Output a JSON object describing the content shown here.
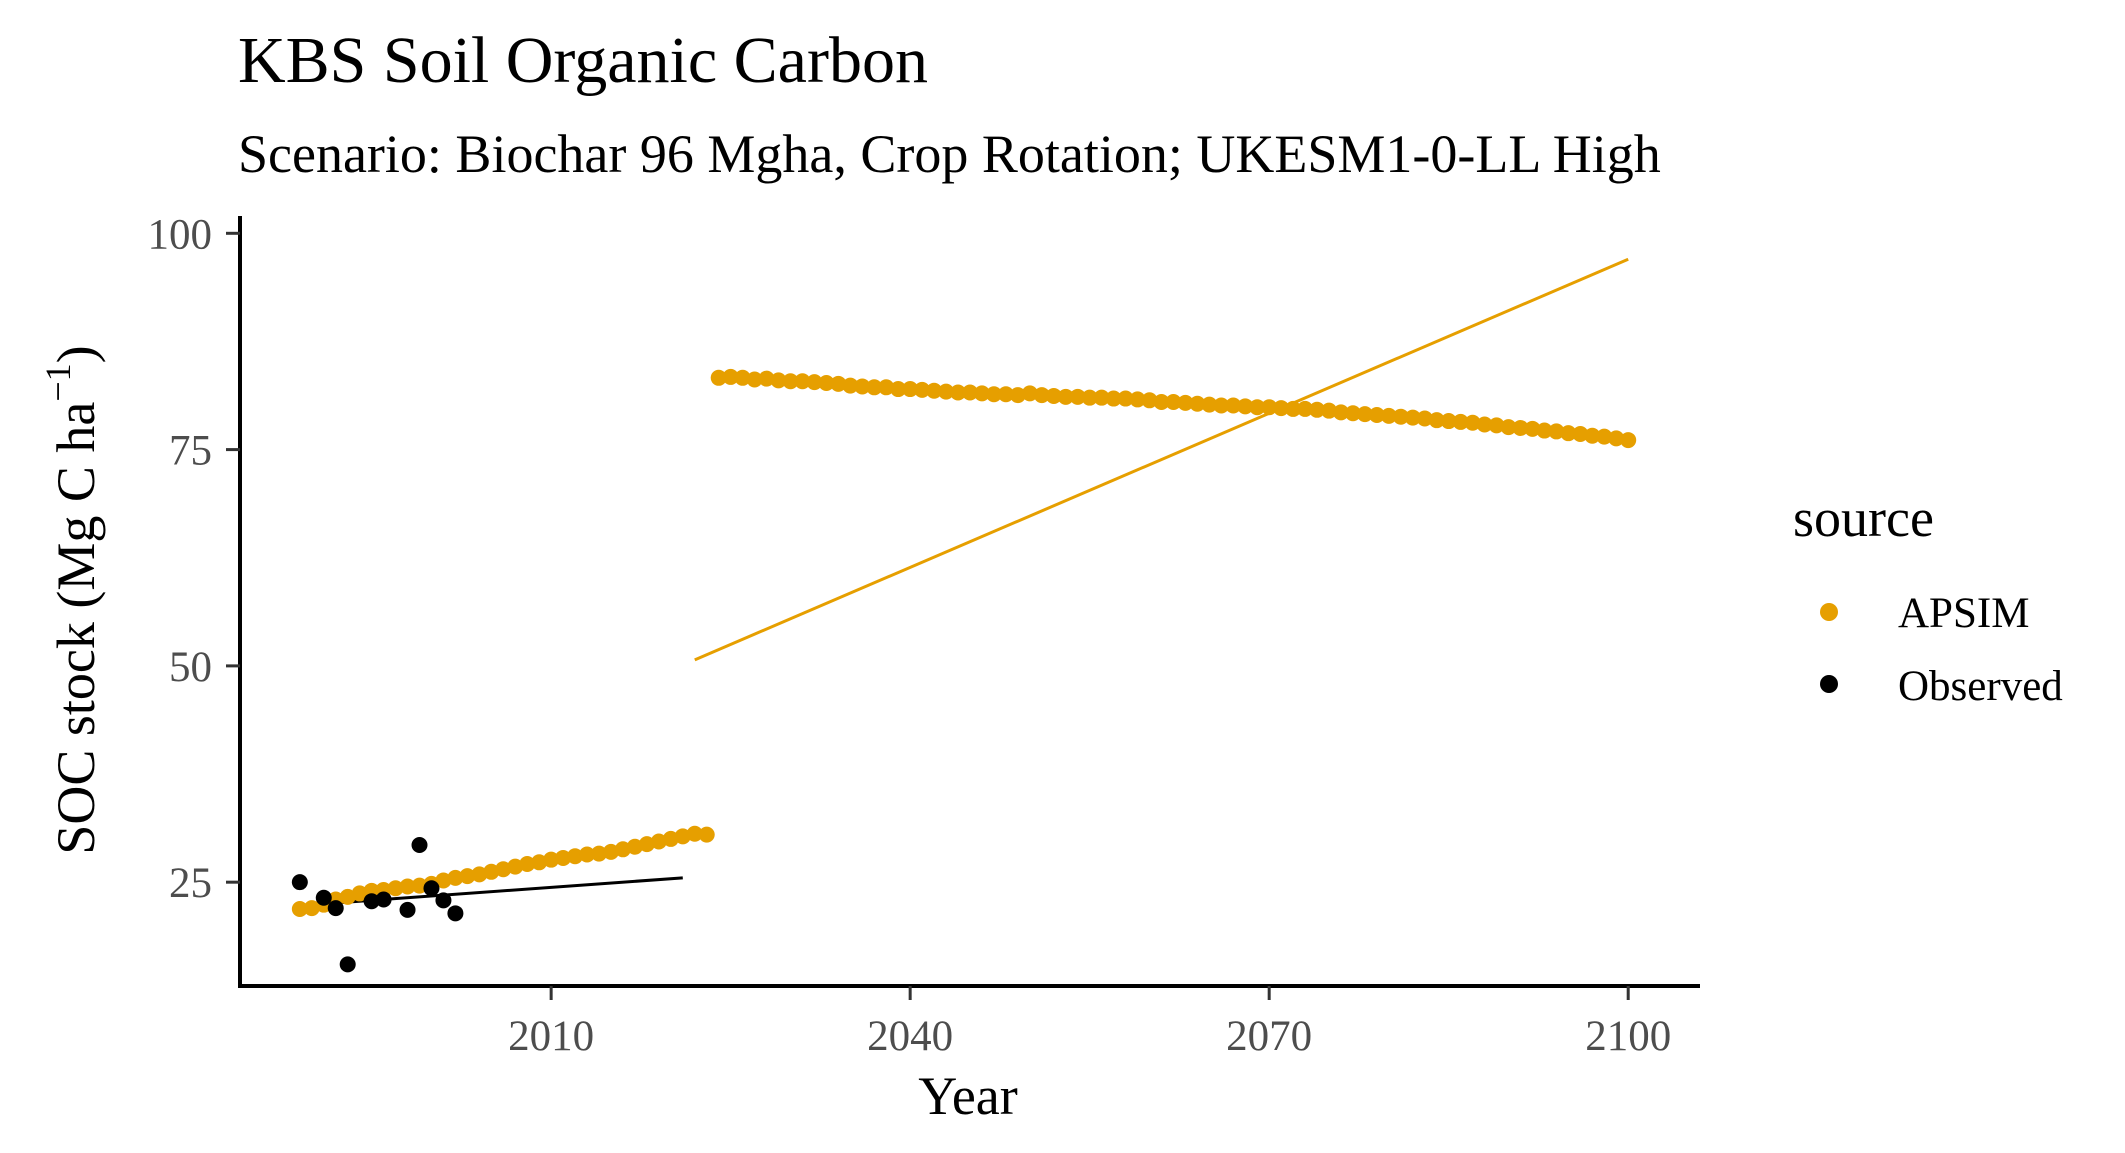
{
  "chart_data": {
    "type": "scatter",
    "title": "KBS Soil Organic Carbon",
    "subtitle": "Scenario: Biochar 96 Mgha, Crop Rotation; UKESM1-0-LL High",
    "xlabel": "Year",
    "ylabel_main": "SOC stock (Mg C ha",
    "ylabel_sup": "−1",
    "ylabel_close": ")",
    "xlim": [
      1984,
      2106
    ],
    "ylim": [
      13,
      102
    ],
    "x_ticks": [
      2010,
      2040,
      2070,
      2100
    ],
    "y_ticks": [
      25,
      50,
      75,
      100
    ],
    "x_tick_labels": [
      "2010",
      "2040",
      "2070",
      "2100"
    ],
    "y_tick_labels": [
      "25",
      "50",
      "75",
      "100"
    ],
    "grid": false,
    "legend": {
      "title": "source",
      "position": "right",
      "entries": [
        {
          "label": "APSIM",
          "color": "#E69F00"
        },
        {
          "label": "Observed",
          "color": "#000000"
        }
      ]
    },
    "series": [
      {
        "name": "APSIM",
        "color": "#E69F00",
        "points": [
          [
            1989,
            21.9
          ],
          [
            1990,
            22.0
          ],
          [
            1991,
            22.4
          ],
          [
            1992,
            23.0
          ],
          [
            1993,
            23.3
          ],
          [
            1994,
            23.7
          ],
          [
            1995,
            24.0
          ],
          [
            1996,
            24.1
          ],
          [
            1997,
            24.3
          ],
          [
            1998,
            24.5
          ],
          [
            1999,
            24.6
          ],
          [
            2000,
            24.8
          ],
          [
            2001,
            25.2
          ],
          [
            2002,
            25.5
          ],
          [
            2003,
            25.7
          ],
          [
            2004,
            25.9
          ],
          [
            2005,
            26.2
          ],
          [
            2006,
            26.5
          ],
          [
            2007,
            26.8
          ],
          [
            2008,
            27.1
          ],
          [
            2009,
            27.3
          ],
          [
            2010,
            27.6
          ],
          [
            2011,
            27.8
          ],
          [
            2012,
            28.0
          ],
          [
            2013,
            28.2
          ],
          [
            2014,
            28.3
          ],
          [
            2015,
            28.5
          ],
          [
            2016,
            28.8
          ],
          [
            2017,
            29.1
          ],
          [
            2018,
            29.4
          ],
          [
            2019,
            29.7
          ],
          [
            2020,
            30.0
          ],
          [
            2021,
            30.3
          ],
          [
            2022,
            30.6
          ],
          [
            2023,
            30.5
          ],
          [
            2024,
            83.3
          ],
          [
            2025,
            83.4
          ],
          [
            2026,
            83.3
          ],
          [
            2027,
            83.1
          ],
          [
            2028,
            83.2
          ],
          [
            2029,
            83.0
          ],
          [
            2030,
            82.9
          ],
          [
            2031,
            82.9
          ],
          [
            2032,
            82.8
          ],
          [
            2033,
            82.7
          ],
          [
            2034,
            82.6
          ],
          [
            2035,
            82.4
          ],
          [
            2036,
            82.3
          ],
          [
            2037,
            82.2
          ],
          [
            2038,
            82.2
          ],
          [
            2039,
            82.0
          ],
          [
            2040,
            82.0
          ],
          [
            2041,
            81.9
          ],
          [
            2042,
            81.8
          ],
          [
            2043,
            81.7
          ],
          [
            2044,
            81.6
          ],
          [
            2045,
            81.6
          ],
          [
            2046,
            81.5
          ],
          [
            2047,
            81.4
          ],
          [
            2048,
            81.4
          ],
          [
            2049,
            81.3
          ],
          [
            2050,
            81.5
          ],
          [
            2051,
            81.3
          ],
          [
            2052,
            81.2
          ],
          [
            2053,
            81.1
          ],
          [
            2054,
            81.1
          ],
          [
            2055,
            81.0
          ],
          [
            2056,
            81.0
          ],
          [
            2057,
            80.9
          ],
          [
            2058,
            80.9
          ],
          [
            2059,
            80.8
          ],
          [
            2060,
            80.7
          ],
          [
            2061,
            80.5
          ],
          [
            2062,
            80.5
          ],
          [
            2063,
            80.4
          ],
          [
            2064,
            80.3
          ],
          [
            2065,
            80.2
          ],
          [
            2066,
            80.1
          ],
          [
            2067,
            80.1
          ],
          [
            2068,
            80.0
          ],
          [
            2069,
            79.9
          ],
          [
            2070,
            79.9
          ],
          [
            2071,
            79.8
          ],
          [
            2072,
            79.7
          ],
          [
            2073,
            79.7
          ],
          [
            2074,
            79.6
          ],
          [
            2075,
            79.5
          ],
          [
            2076,
            79.3
          ],
          [
            2077,
            79.2
          ],
          [
            2078,
            79.1
          ],
          [
            2079,
            79.0
          ],
          [
            2080,
            78.9
          ],
          [
            2081,
            78.8
          ],
          [
            2082,
            78.7
          ],
          [
            2083,
            78.6
          ],
          [
            2084,
            78.4
          ],
          [
            2085,
            78.3
          ],
          [
            2086,
            78.2
          ],
          [
            2087,
            78.1
          ],
          [
            2088,
            77.9
          ],
          [
            2089,
            77.8
          ],
          [
            2090,
            77.6
          ],
          [
            2091,
            77.5
          ],
          [
            2092,
            77.4
          ],
          [
            2093,
            77.2
          ],
          [
            2094,
            77.1
          ],
          [
            2095,
            76.9
          ],
          [
            2096,
            76.8
          ],
          [
            2097,
            76.6
          ],
          [
            2098,
            76.5
          ],
          [
            2099,
            76.3
          ],
          [
            2100,
            76.1
          ]
        ]
      },
      {
        "name": "Observed",
        "color": "#000000",
        "points": [
          [
            1989,
            25.0
          ],
          [
            1991,
            23.2
          ],
          [
            1992,
            22.0
          ],
          [
            1993,
            15.5
          ],
          [
            1995,
            22.8
          ],
          [
            1996,
            23.0
          ],
          [
            1998,
            21.8
          ],
          [
            1999,
            29.3
          ],
          [
            2000,
            24.3
          ],
          [
            2001,
            22.9
          ],
          [
            2002,
            21.4
          ]
        ]
      }
    ],
    "trend_lines": [
      {
        "name": "APSIM",
        "color": "#E69F00",
        "x": [
          2022,
          2100
        ],
        "y": [
          50.7,
          97.0
        ]
      },
      {
        "name": "Observed",
        "color": "#000000",
        "x": [
          1989,
          2021
        ],
        "y": [
          22.3,
          25.5
        ]
      }
    ]
  }
}
